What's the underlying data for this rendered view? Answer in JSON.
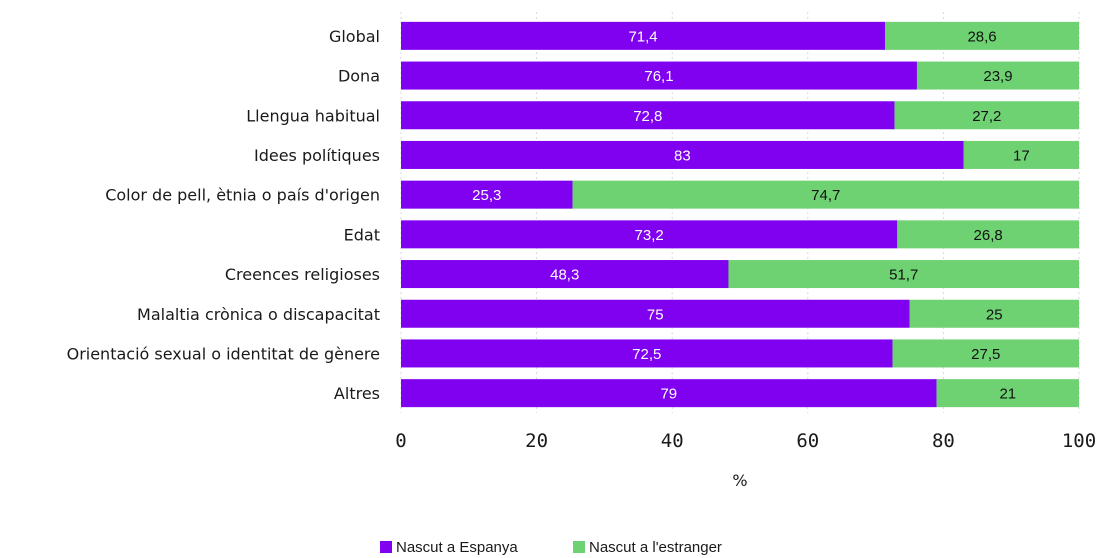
{
  "chart_data": {
    "type": "bar",
    "orientation": "horizontal",
    "stacked": true,
    "categories": [
      "Global",
      "Dona",
      "Llengua habitual",
      "Idees polítiques",
      "Color de pell, ètnia o país d'origen",
      "Edat",
      "Creences religioses",
      "Malaltia crònica o discapacitat",
      "Orientació sexual o identitat de gènere",
      "Altres"
    ],
    "series": [
      {
        "name": "Nascut a Espanya",
        "color": "#8000f0",
        "label_color": "#ffffff",
        "values": [
          71.4,
          76.1,
          72.8,
          83,
          25.3,
          73.2,
          48.3,
          75,
          72.5,
          79
        ],
        "labels": [
          "71,4",
          "76,1",
          "72,8",
          "83",
          "25,3",
          "73,2",
          "48,3",
          "75",
          "72,5",
          "79"
        ]
      },
      {
        "name": "Nascut a l'estranger",
        "color": "#6ed273",
        "label_color": "#111111",
        "values": [
          28.6,
          23.9,
          27.2,
          17,
          74.7,
          26.8,
          51.7,
          25,
          27.5,
          21
        ],
        "labels": [
          "28,6",
          "23,9",
          "27,2",
          "17",
          "74,7",
          "26,8",
          "51,7",
          "25",
          "27,5",
          "21"
        ]
      }
    ],
    "xlabel": "%",
    "xlim": [
      0,
      100
    ],
    "xticks": [
      "0",
      "20",
      "40",
      "60",
      "80",
      "100"
    ],
    "grid": "vertical dashed",
    "legend_position": "bottom-center"
  }
}
